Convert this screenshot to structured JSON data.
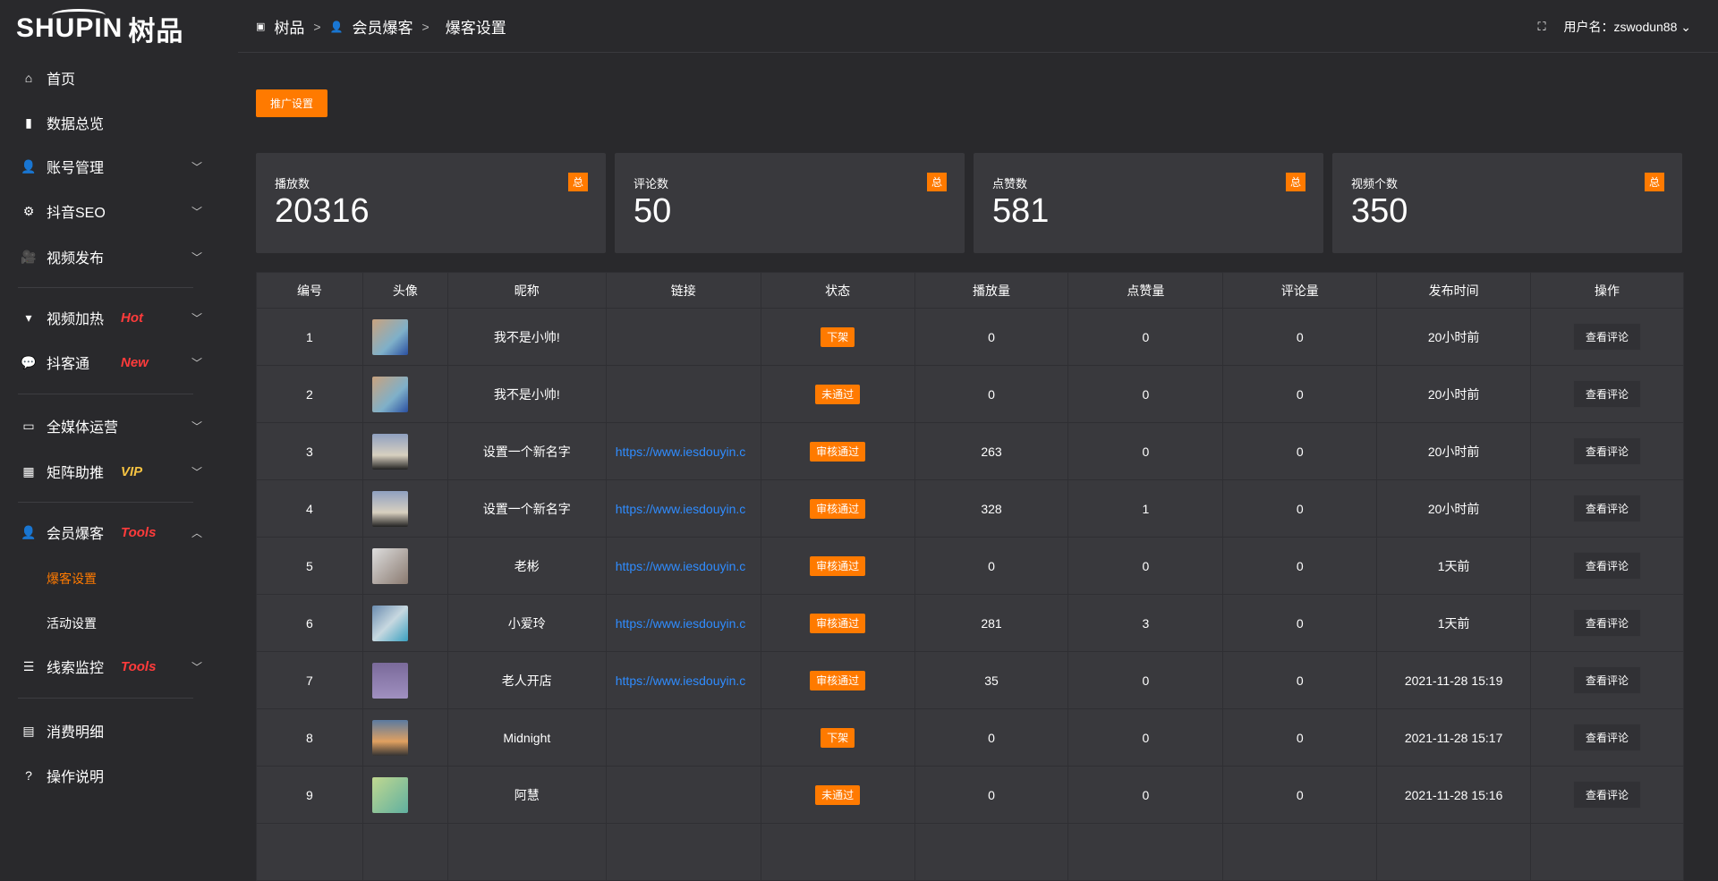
{
  "brand": {
    "logo_text": "SHUPIN",
    "logo_cn": "树品"
  },
  "sidebar": {
    "items": [
      {
        "label": "首页",
        "icon": "home-icon",
        "badge": "",
        "chevron": ""
      },
      {
        "label": "数据总览",
        "icon": "bar-chart-icon",
        "badge": "",
        "chevron": ""
      },
      {
        "label": "账号管理",
        "icon": "user-icon",
        "badge": "",
        "chevron": "down"
      },
      {
        "label": "抖音SEO",
        "icon": "gear-icon",
        "badge": "",
        "chevron": "down"
      },
      {
        "label": "视频发布",
        "icon": "camera-icon",
        "badge": "",
        "chevron": "down"
      },
      {
        "label": "视频加热",
        "icon": "sign-icon",
        "badge": "Hot",
        "badge_color": "#ff3b3b",
        "chevron": "down"
      },
      {
        "label": "抖客通",
        "icon": "chat-icon",
        "badge": "New",
        "badge_color": "#ff3b3b",
        "chevron": "down"
      },
      {
        "label": "全媒体运营",
        "icon": "monitor-icon",
        "badge": "",
        "chevron": "down"
      },
      {
        "label": "矩阵助推",
        "icon": "grid-icon",
        "badge": "VIP",
        "badge_color": "#f5c242",
        "chevron": "down"
      },
      {
        "label": "会员爆客",
        "icon": "user-icon",
        "badge": "Tools",
        "badge_color": "#ff3b3b",
        "chevron": "up"
      },
      {
        "label": "线索监控",
        "icon": "sliders-icon",
        "badge": "Tools",
        "badge_color": "#ff3b3b",
        "chevron": "down"
      },
      {
        "label": "消费明细",
        "icon": "wallet-icon",
        "badge": "",
        "chevron": ""
      },
      {
        "label": "操作说明",
        "icon": "help-icon",
        "badge": "",
        "chevron": ""
      }
    ],
    "sub_items": [
      {
        "label": "爆客设置",
        "active": true
      },
      {
        "label": "活动设置",
        "active": false
      }
    ]
  },
  "header": {
    "breadcrumb": [
      "树品",
      "会员爆客",
      "爆客设置"
    ],
    "username": "用户名：zswodun88"
  },
  "toolbar": {
    "promo_label": "推广设置"
  },
  "stats": [
    {
      "title": "播放数",
      "value": "20316",
      "badge": "总"
    },
    {
      "title": "评论数",
      "value": "50",
      "badge": "总"
    },
    {
      "title": "点赞数",
      "value": "581",
      "badge": "总"
    },
    {
      "title": "视频个数",
      "value": "350",
      "badge": "总"
    }
  ],
  "table": {
    "columns": [
      "编号",
      "头像",
      "昵称",
      "链接",
      "状态",
      "播放量",
      "点赞量",
      "评论量",
      "发布时间",
      "操作"
    ],
    "rows": [
      {
        "id": "1",
        "name": "我不是小帅!",
        "link": "",
        "status": "下架",
        "plays": "0",
        "likes": "0",
        "comments": "0",
        "time": "20小时前",
        "op": "查看评论"
      },
      {
        "id": "2",
        "name": "我不是小帅!",
        "link": "",
        "status": "未通过",
        "plays": "0",
        "likes": "0",
        "comments": "0",
        "time": "20小时前",
        "op": "查看评论"
      },
      {
        "id": "3",
        "name": "设置一个新名字",
        "link": "https://www.iesdouyin.c",
        "status": "审核通过",
        "plays": "263",
        "likes": "0",
        "comments": "0",
        "time": "20小时前",
        "op": "查看评论"
      },
      {
        "id": "4",
        "name": "设置一个新名字",
        "link": "https://www.iesdouyin.c",
        "status": "审核通过",
        "plays": "328",
        "likes": "1",
        "comments": "0",
        "time": "20小时前",
        "op": "查看评论"
      },
      {
        "id": "5",
        "name": "老彬",
        "link": "https://www.iesdouyin.c",
        "status": "审核通过",
        "plays": "0",
        "likes": "0",
        "comments": "0",
        "time": "1天前",
        "op": "查看评论"
      },
      {
        "id": "6",
        "name": "小爱玲",
        "link": "https://www.iesdouyin.c",
        "status": "审核通过",
        "plays": "281",
        "likes": "3",
        "comments": "0",
        "time": "1天前",
        "op": "查看评论"
      },
      {
        "id": "7",
        "name": "老人开店",
        "link": "https://www.iesdouyin.c",
        "status": "审核通过",
        "plays": "35",
        "likes": "0",
        "comments": "0",
        "time": "2021-11-28 15:19",
        "op": "查看评论"
      },
      {
        "id": "8",
        "name": "Midnight",
        "link": "",
        "status": "下架",
        "plays": "0",
        "likes": "0",
        "comments": "0",
        "time": "2021-11-28 15:17",
        "op": "查看评论"
      },
      {
        "id": "9",
        "name": "阿慧",
        "link": "",
        "status": "未通过",
        "plays": "0",
        "likes": "0",
        "comments": "0",
        "time": "2021-11-28 15:16",
        "op": "查看评论"
      }
    ]
  },
  "colors": {
    "accent": "#ff7a00",
    "link": "#2f8cff",
    "bg": "#29292c",
    "card": "#39393d"
  }
}
